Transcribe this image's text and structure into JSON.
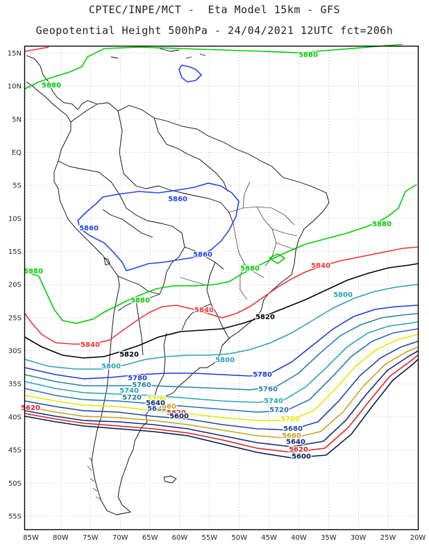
{
  "header": {
    "title_line1": "CPTEC/INPE/MCT -  Eta Model 15km - GFS",
    "title_line2": "Geopotential Height 500hPa - 24/04/2021 12UTC fct=206h"
  },
  "axes": {
    "lat_labels": [
      "15N",
      "10N",
      "5N",
      "EQ",
      "5S",
      "10S",
      "15S",
      "20S",
      "25S",
      "30S",
      "35S",
      "40S",
      "45S",
      "50S",
      "55S"
    ],
    "lon_labels": [
      "85W",
      "80W",
      "75W",
      "70W",
      "65W",
      "60W",
      "55W",
      "50W",
      "45W",
      "40W",
      "35W",
      "30W",
      "25W",
      "20W"
    ],
    "lat_range": [
      16,
      -57
    ],
    "lon_range": [
      -86,
      -20
    ],
    "grid": true
  },
  "contours": [
    {
      "value": "5880",
      "color": "#00cc00"
    },
    {
      "value": "5860",
      "color": "#2244ee"
    },
    {
      "value": "5840",
      "color": "#ee3333"
    },
    {
      "value": "5820",
      "color": "#000000"
    },
    {
      "value": "5800",
      "color": "#2aa0b8"
    },
    {
      "value": "5780",
      "color": "#1a3ad8"
    },
    {
      "value": "5760",
      "color": "#2880a8"
    },
    {
      "value": "5740",
      "color": "#22a8b0"
    },
    {
      "value": "5720",
      "color": "#2870b0"
    },
    {
      "value": "5700",
      "color": "#e6e600"
    },
    {
      "value": "5680",
      "color": "#1a4a9a"
    },
    {
      "value": "5660",
      "color": "#c8a020"
    },
    {
      "value": "5640",
      "color": "#102a7a"
    },
    {
      "value": "5620",
      "color": "#dd2222"
    },
    {
      "value": "5600",
      "color": "#001a55"
    }
  ],
  "colors": {
    "land": "#000000",
    "grid": "#999999",
    "frame": "#000000"
  }
}
